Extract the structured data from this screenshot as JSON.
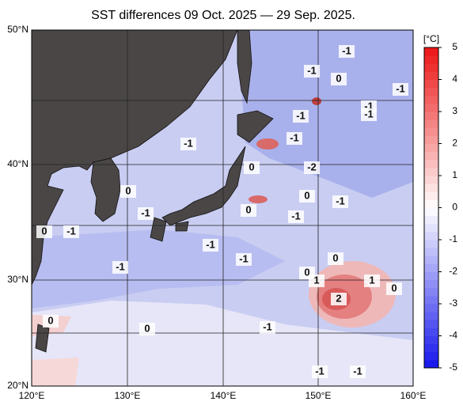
{
  "title": "SST differences 09 Oct. 2025 — 29 Sep. 2025.",
  "lon_labels": [
    "120°E",
    "130°E",
    "140°E",
    "150°E",
    "160°E"
  ],
  "lat_labels": [
    "50°N",
    "40°N",
    "30°N",
    "20°N"
  ],
  "colorbar": {
    "label": "[°C]",
    "range": [
      -5,
      5
    ],
    "ticks": [
      5,
      4,
      3,
      2,
      1,
      0,
      -1,
      -2,
      -3,
      -4,
      -5
    ]
  },
  "contour_labels": [
    "-1",
    "-1",
    "0",
    "-1",
    "-1",
    "-1",
    "-1",
    "-1",
    "-1",
    "0",
    "-2",
    "0",
    "-1",
    "-1",
    "0",
    "0",
    "-1",
    "-1",
    "-1",
    "0",
    "-1",
    "0",
    "1",
    "1",
    "0",
    "2",
    "0",
    "0",
    "-1",
    "-1",
    "-1",
    "-1",
    "0"
  ]
}
